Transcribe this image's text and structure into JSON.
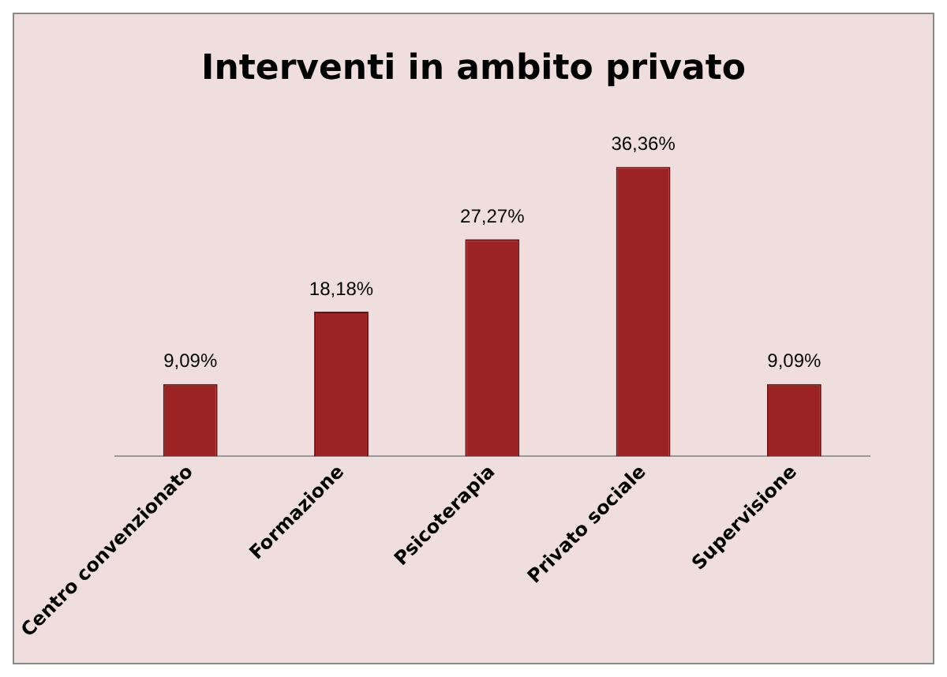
{
  "chart_data": {
    "type": "bar",
    "title": "Interventi in ambito privato",
    "categories": [
      "Centro convenzionato",
      "Formazione",
      "Psicoterapia",
      "Privato sociale",
      "Supervisione"
    ],
    "values": [
      9.09,
      18.18,
      27.27,
      36.36,
      9.09
    ],
    "value_labels": [
      "9,09%",
      "18,18%",
      "27,27%",
      "36,36%",
      "9,09%"
    ],
    "color": "#9b2323",
    "grid": false,
    "legend": false
  }
}
